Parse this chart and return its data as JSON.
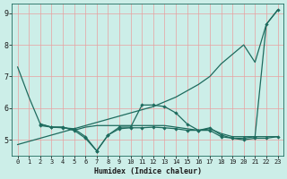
{
  "xlabel": "Humidex (Indice chaleur)",
  "bg_color": "#cceee8",
  "grid_color": "#e8a0a0",
  "line_color": "#1e6b5e",
  "xlim": [
    -0.5,
    23.5
  ],
  "ylim": [
    4.5,
    9.3
  ],
  "xticks": [
    0,
    1,
    2,
    3,
    4,
    5,
    6,
    7,
    8,
    9,
    10,
    11,
    12,
    13,
    14,
    15,
    16,
    17,
    18,
    19,
    20,
    21,
    22,
    23
  ],
  "yticks": [
    5,
    6,
    7,
    8,
    9
  ],
  "line_diagonal_x": [
    0,
    1,
    2,
    3,
    4,
    5,
    6,
    7,
    8,
    9,
    10,
    11,
    12,
    13,
    14,
    15,
    16,
    17,
    18,
    19,
    20,
    21,
    22,
    23
  ],
  "line_diagonal_y": [
    4.85,
    4.95,
    5.05,
    5.15,
    5.25,
    5.35,
    5.45,
    5.55,
    5.65,
    5.75,
    5.85,
    5.95,
    6.05,
    6.2,
    6.35,
    6.55,
    6.75,
    7.0,
    7.4,
    7.7,
    8.0,
    7.45,
    8.65,
    9.1
  ],
  "line_drop_x": [
    0,
    1,
    2,
    3,
    4,
    5,
    6,
    7,
    8,
    9,
    10,
    11,
    12,
    13,
    14,
    15,
    16,
    17,
    18,
    19,
    20,
    21,
    22,
    23
  ],
  "line_drop_y": [
    7.3,
    6.35,
    5.5,
    5.4,
    5.4,
    5.3,
    5.4,
    5.45,
    5.45,
    5.45,
    5.45,
    5.45,
    5.45,
    5.45,
    5.4,
    5.35,
    5.3,
    5.35,
    5.2,
    5.1,
    5.1,
    5.1,
    5.1,
    5.1
  ],
  "line_hump_x": [
    2,
    3,
    4,
    5,
    6,
    7,
    8,
    9,
    10,
    11,
    12,
    13,
    14,
    15,
    16,
    17,
    18,
    19,
    20,
    21,
    22,
    23
  ],
  "line_hump_y": [
    5.5,
    5.4,
    5.4,
    5.3,
    5.05,
    4.65,
    5.15,
    5.4,
    5.4,
    6.1,
    6.1,
    6.05,
    5.85,
    5.5,
    5.3,
    5.3,
    5.1,
    5.05,
    5.05,
    5.1,
    8.65,
    9.1
  ],
  "line_flat_x": [
    2,
    3,
    4,
    5,
    6,
    7,
    8,
    9,
    10,
    11,
    12,
    13,
    14,
    15,
    16,
    17,
    18,
    19,
    20,
    21,
    22,
    23
  ],
  "line_flat_y": [
    5.45,
    5.4,
    5.38,
    5.35,
    5.1,
    4.65,
    5.15,
    5.35,
    5.38,
    5.38,
    5.4,
    5.38,
    5.35,
    5.3,
    5.3,
    5.38,
    5.15,
    5.05,
    5.0,
    5.05,
    5.05,
    5.1
  ]
}
